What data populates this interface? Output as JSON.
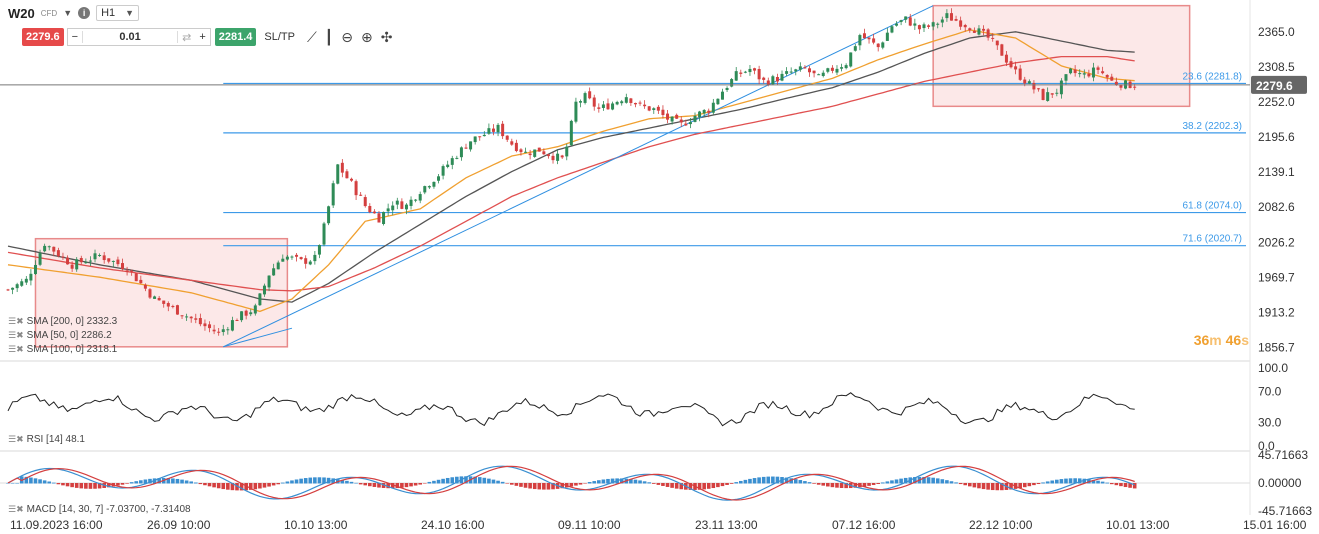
{
  "header": {
    "symbol": "W20",
    "instrument_type": "CFD",
    "timeframe": "H1",
    "sell_price": "2279.6",
    "buy_price": "2281.4",
    "quantity": "0.01",
    "sltp_label": "SL/TP",
    "minus": "−",
    "plus": "+",
    "swap_glyph": "⇄"
  },
  "timer": {
    "minutes": "36",
    "m": "m",
    "seconds": "46",
    "s": "s"
  },
  "indicators": {
    "sma200": "SMA [200, 0] 2332.3",
    "sma50": "SMA [50, 0] 2286.2",
    "sma100": "SMA [100, 0] 2318.1",
    "rsi": "RSI [14] 48.1",
    "macd": "MACD [14, 30, 7] -7.03700, -7.31408"
  },
  "colors": {
    "up": "#2e8b57",
    "down": "#d43f3f",
    "sma50": "#f0a030",
    "sma100": "#e05050",
    "sma200": "#555555",
    "fib": "#3d9ae8",
    "trend": "#2f8fe0",
    "box_fill": "#fbe0e0",
    "box_stroke": "#e88a8a",
    "price_tag": "#666666",
    "macd_hist_pos": "#3a8fd0",
    "macd_hist_neg": "#d43f3f"
  },
  "chart_data": [
    {
      "type": "candlestick",
      "title": "W20",
      "ylim": [
        1840,
        2400
      ],
      "y_ticks": [
        "2365.0",
        "2308.5",
        "2252.0",
        "2195.6",
        "2139.1",
        "2082.6",
        "2026.2",
        "1969.7",
        "1913.2",
        "1856.7"
      ],
      "x_ticks": [
        "11.09.2023 16:00",
        "26.09 10:00",
        "10.10 13:00",
        "24.10 16:00",
        "09.11 10:00",
        "23.11 13:00",
        "07.12 16:00",
        "22.12 10:00",
        "10.01 13:00",
        "15.01 16:00"
      ],
      "current_price": "2279.6",
      "fibonacci_levels": [
        {
          "label": "23.6 (2281.8)",
          "value": 2281.8
        },
        {
          "label": "38.2 (2202.3)",
          "value": 2202.3
        },
        {
          "label": "61.8 (2074.0)",
          "value": 2074.0
        },
        {
          "label": "71.6 (2020.7)",
          "value": 2020.7
        }
      ],
      "price_path": [
        [
          0,
          1950
        ],
        [
          4,
          1965
        ],
        [
          8,
          2025
        ],
        [
          14,
          1990
        ],
        [
          20,
          2005
        ],
        [
          26,
          1985
        ],
        [
          32,
          1935
        ],
        [
          38,
          1912
        ],
        [
          42,
          1895
        ],
        [
          46,
          1880
        ],
        [
          50,
          1905
        ],
        [
          54,
          1920
        ],
        [
          57,
          1975
        ],
        [
          60,
          2005
        ],
        [
          64,
          1995
        ],
        [
          67,
          2000
        ],
        [
          69,
          2050
        ],
        [
          72,
          2150
        ],
        [
          75,
          2120
        ],
        [
          78,
          2085
        ],
        [
          81,
          2065
        ],
        [
          84,
          2090
        ],
        [
          87,
          2085
        ],
        [
          90,
          2110
        ],
        [
          94,
          2135
        ],
        [
          97,
          2160
        ],
        [
          101,
          2190
        ],
        [
          104,
          2200
        ],
        [
          107,
          2210
        ],
        [
          110,
          2185
        ],
        [
          113,
          2170
        ],
        [
          116,
          2175
        ],
        [
          119,
          2165
        ],
        [
          121,
          2160
        ],
        [
          122,
          2180
        ],
        [
          124,
          2250
        ],
        [
          126,
          2260
        ],
        [
          129,
          2240
        ],
        [
          132,
          2250
        ],
        [
          135,
          2262
        ],
        [
          138,
          2245
        ],
        [
          141,
          2240
        ],
        [
          144,
          2225
        ],
        [
          147,
          2215
        ],
        [
          150,
          2230
        ],
        [
          153,
          2240
        ],
        [
          156,
          2270
        ],
        [
          159,
          2295
        ],
        [
          162,
          2305
        ],
        [
          165,
          2285
        ],
        [
          168,
          2290
        ],
        [
          171,
          2300
        ],
        [
          174,
          2305
        ],
        [
          177,
          2290
        ],
        [
          180,
          2305
        ],
        [
          183,
          2315
        ],
        [
          186,
          2360
        ],
        [
          188,
          2350
        ],
        [
          190,
          2340
        ],
        [
          193,
          2375
        ],
        [
          196,
          2385
        ],
        [
          199,
          2370
        ],
        [
          202,
          2375
        ],
        [
          205,
          2390
        ],
        [
          208,
          2380
        ],
        [
          211,
          2370
        ],
        [
          214,
          2355
        ],
        [
          217,
          2330
        ],
        [
          220,
          2300
        ],
        [
          223,
          2280
        ],
        [
          226,
          2260
        ],
        [
          229,
          2270
        ],
        [
          232,
          2300
        ],
        [
          235,
          2295
        ],
        [
          238,
          2305
        ],
        [
          241,
          2285
        ],
        [
          244,
          2280
        ],
        [
          246,
          2279.6
        ]
      ],
      "sma50_path": [
        [
          0,
          1990
        ],
        [
          20,
          1970
        ],
        [
          40,
          1945
        ],
        [
          55,
          1915
        ],
        [
          62,
          1935
        ],
        [
          70,
          1990
        ],
        [
          78,
          2060
        ],
        [
          90,
          2080
        ],
        [
          100,
          2130
        ],
        [
          110,
          2165
        ],
        [
          120,
          2180
        ],
        [
          130,
          2205
        ],
        [
          140,
          2225
        ],
        [
          150,
          2230
        ],
        [
          160,
          2250
        ],
        [
          170,
          2270
        ],
        [
          180,
          2290
        ],
        [
          190,
          2320
        ],
        [
          200,
          2345
        ],
        [
          210,
          2368
        ],
        [
          220,
          2355
        ],
        [
          230,
          2310
        ],
        [
          240,
          2290
        ],
        [
          246,
          2286.2
        ]
      ],
      "sma100_path": [
        [
          0,
          2010
        ],
        [
          20,
          1985
        ],
        [
          40,
          1965
        ],
        [
          55,
          1950
        ],
        [
          62,
          1948
        ],
        [
          70,
          1955
        ],
        [
          80,
          1985
        ],
        [
          90,
          2020
        ],
        [
          100,
          2060
        ],
        [
          110,
          2100
        ],
        [
          120,
          2130
        ],
        [
          130,
          2155
        ],
        [
          140,
          2180
        ],
        [
          150,
          2200
        ],
        [
          160,
          2215
        ],
        [
          170,
          2230
        ],
        [
          180,
          2245
        ],
        [
          190,
          2265
        ],
        [
          200,
          2285
        ],
        [
          210,
          2300
        ],
        [
          220,
          2315
        ],
        [
          230,
          2325
        ],
        [
          240,
          2325
        ],
        [
          246,
          2318.1
        ]
      ],
      "sma200_path": [
        [
          0,
          2020
        ],
        [
          20,
          1990
        ],
        [
          40,
          1965
        ],
        [
          55,
          1935
        ],
        [
          62,
          1930
        ],
        [
          70,
          1960
        ],
        [
          80,
          2010
        ],
        [
          90,
          2055
        ],
        [
          100,
          2100
        ],
        [
          110,
          2140
        ],
        [
          120,
          2175
        ],
        [
          130,
          2195
        ],
        [
          140,
          2210
        ],
        [
          150,
          2225
        ],
        [
          160,
          2240
        ],
        [
          170,
          2258
        ],
        [
          180,
          2275
        ],
        [
          190,
          2300
        ],
        [
          200,
          2330
        ],
        [
          210,
          2355
        ],
        [
          220,
          2365
        ],
        [
          230,
          2350
        ],
        [
          240,
          2335
        ],
        [
          246,
          2332.3
        ]
      ]
    },
    {
      "type": "line",
      "title": "RSI [14] 48.1",
      "ylim": [
        0,
        100
      ],
      "y_ticks": [
        "100.0",
        "70.0",
        "30.0",
        "0.0"
      ],
      "levels": [
        30,
        70
      ],
      "last_value": 48.1
    },
    {
      "type": "bar",
      "title": "MACD [14, 30, 7] -7.03700, -7.31408",
      "ylim": [
        -45.7166,
        45.7166
      ],
      "y_ticks": [
        "45.71663",
        "0.00000",
        "-45.71663"
      ],
      "macd_value": -7.037,
      "signal_value": -7.31408
    }
  ]
}
